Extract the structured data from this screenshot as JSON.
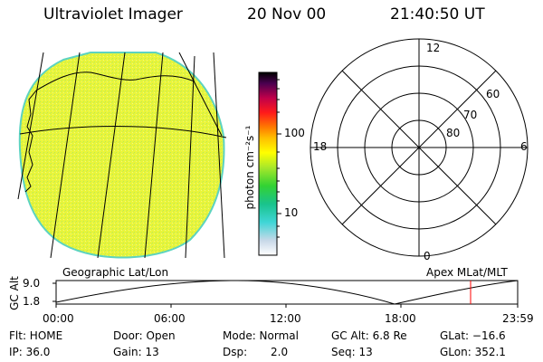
{
  "header": {
    "title": "Ultraviolet Imager",
    "date": "20 Nov 00",
    "time": "21:40:50 UT"
  },
  "colorbar": {
    "unit_label": "photon cm⁻²s⁻¹",
    "tick_100": "100",
    "tick_10": "10"
  },
  "polar_plot": {
    "labels": {
      "top": "12",
      "left": "18",
      "right": "6",
      "bottom": "0"
    },
    "ring_labels": [
      "60",
      "70",
      "80"
    ]
  },
  "panels": {
    "left_caption": "Geographic Lat/Lon",
    "right_caption": "Apex MLat/MLT"
  },
  "altitude_plot": {
    "axis_label": "GC Alt",
    "y_max": "9.0",
    "y_min": "1.8",
    "x_ticks": [
      "00:00",
      "06:00",
      "12:00",
      "18:00",
      "23:59"
    ]
  },
  "footer": {
    "row1": {
      "filter": "Flt: HOME",
      "door": "Door: Open",
      "mode": "Mode: Normal",
      "gc_alt": "GC Alt: 6.8 Re",
      "glat": "GLat: −16.6"
    },
    "row2": {
      "ip": "IP: 36.0",
      "gain": "Gain: 13",
      "dsp_label": "Dsp:",
      "dsp_value": "2.0",
      "seq": "Seq: 13",
      "glon": "GLon: 352.1"
    }
  },
  "colors": {
    "image_fill": "#e9f53a",
    "image_edge": "#5cd3c0",
    "marker": "#ff0000"
  }
}
